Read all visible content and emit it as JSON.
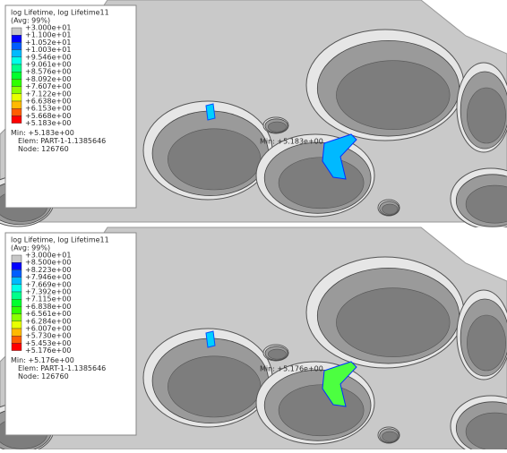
{
  "panels": [
    {
      "title": "log Lifetime, log Lifetime11",
      "average": "(Avg: 99%)",
      "levels": [
        "+3.000e+01",
        "+1.100e+01",
        "+1.052e+01",
        "+1.003e+01",
        "+9.546e+00",
        "+9.061e+00",
        "+8.576e+00",
        "+8.092e+00",
        "+7.607e+00",
        "+7.122e+00",
        "+6.638e+00",
        "+6.153e+00",
        "+5.668e+00",
        "+5.183e+00"
      ],
      "min": "Min: +5.183e+00",
      "elem": "Elem: PART-1-1.1385646",
      "node": "Node: 126760",
      "annotation": "Min: +5.183e+00"
    },
    {
      "title": "log Lifetime, log Lifetime11",
      "average": "(Avg: 99%)",
      "levels": [
        "+3.000e+01",
        "+8.500e+00",
        "+8.223e+00",
        "+7.946e+00",
        "+7.669e+00",
        "+7.392e+00",
        "+7.115e+00",
        "+6.838e+00",
        "+6.561e+00",
        "+6.284e+00",
        "+6.007e+00",
        "+5.730e+00",
        "+5.453e+00",
        "+5.176e+00"
      ],
      "min": "Min: +5.176e+00",
      "elem": "Elem: PART-1-1.1385646",
      "node": "Node: 126760",
      "annotation": "Min: +5.176e+00"
    }
  ],
  "band_colors": [
    "#c8c8c8",
    "#0000ff",
    "#005dff",
    "#00b9ff",
    "#00ffe8",
    "#00ff8b",
    "#00ff2e",
    "#2eff00",
    "#8bff00",
    "#e8ff00",
    "#ffb900",
    "#ff5d00",
    "#ff0000"
  ]
}
